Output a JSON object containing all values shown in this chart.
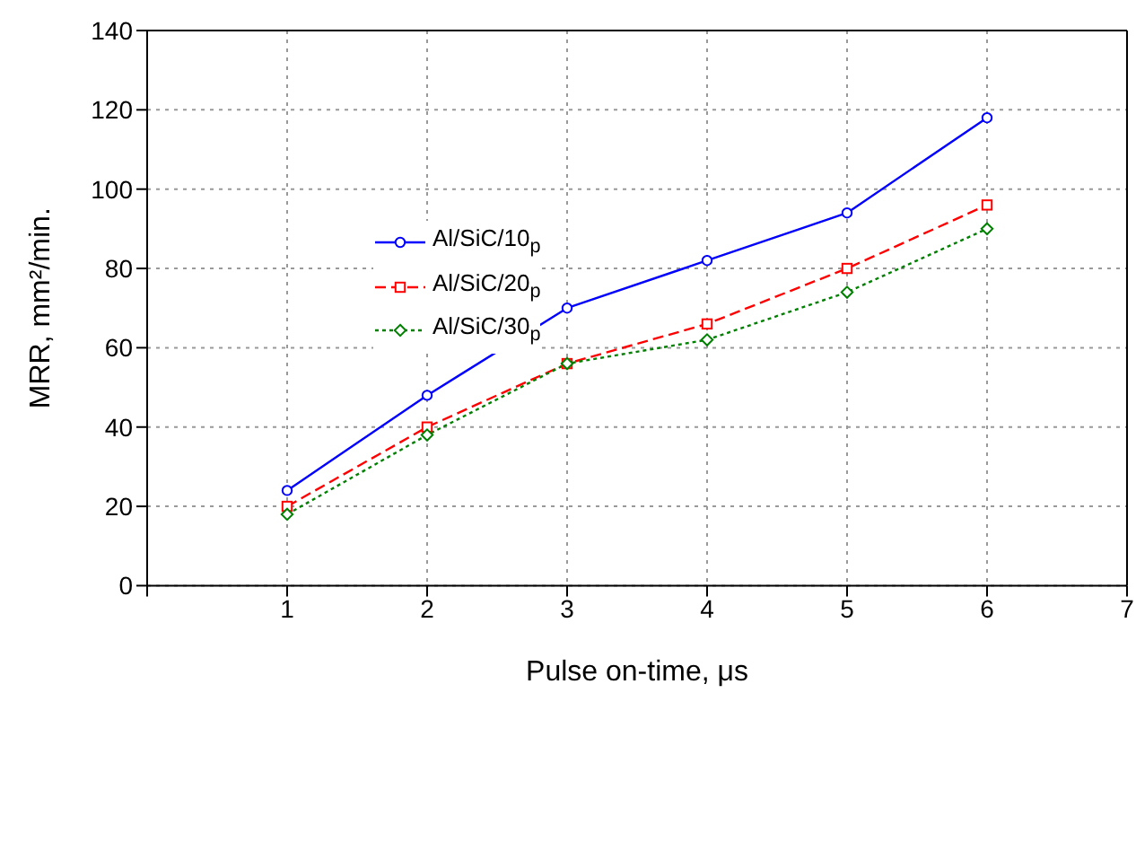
{
  "chart_data": {
    "type": "line",
    "xlabel": "Pulse on-time, μs",
    "ylabel": "MRR, mm²/min.",
    "x": [
      1,
      2,
      3,
      4,
      5,
      6
    ],
    "series": [
      {
        "name": "Al/SiC/10$_{p}$",
        "color": "#0000ff",
        "values": [
          24,
          48,
          70,
          82,
          94,
          118
        ],
        "marker": "circle",
        "line_style": "solid"
      },
      {
        "name": "Al/SiC/20$_{p}$",
        "color": "#ff0000",
        "values": [
          20,
          40,
          56,
          66,
          80,
          96
        ],
        "marker": "square",
        "line_style": "dashed"
      },
      {
        "name": "Al/SiC/30$_{p}$",
        "color": "#008000",
        "values": [
          18,
          38,
          56,
          62,
          74,
          90
        ],
        "marker": "diamond",
        "line_style": "dotted"
      }
    ],
    "xlim": [
      0,
      7
    ],
    "xticks": [
      {
        "value": 0,
        "label": null
      },
      1,
      2,
      3,
      4,
      5,
      6,
      7
    ],
    "ylim": [
      0,
      140
    ],
    "yticks": [
      0,
      20,
      40,
      60,
      80,
      100,
      120,
      140
    ],
    "grid": true,
    "legend": "top left"
  }
}
